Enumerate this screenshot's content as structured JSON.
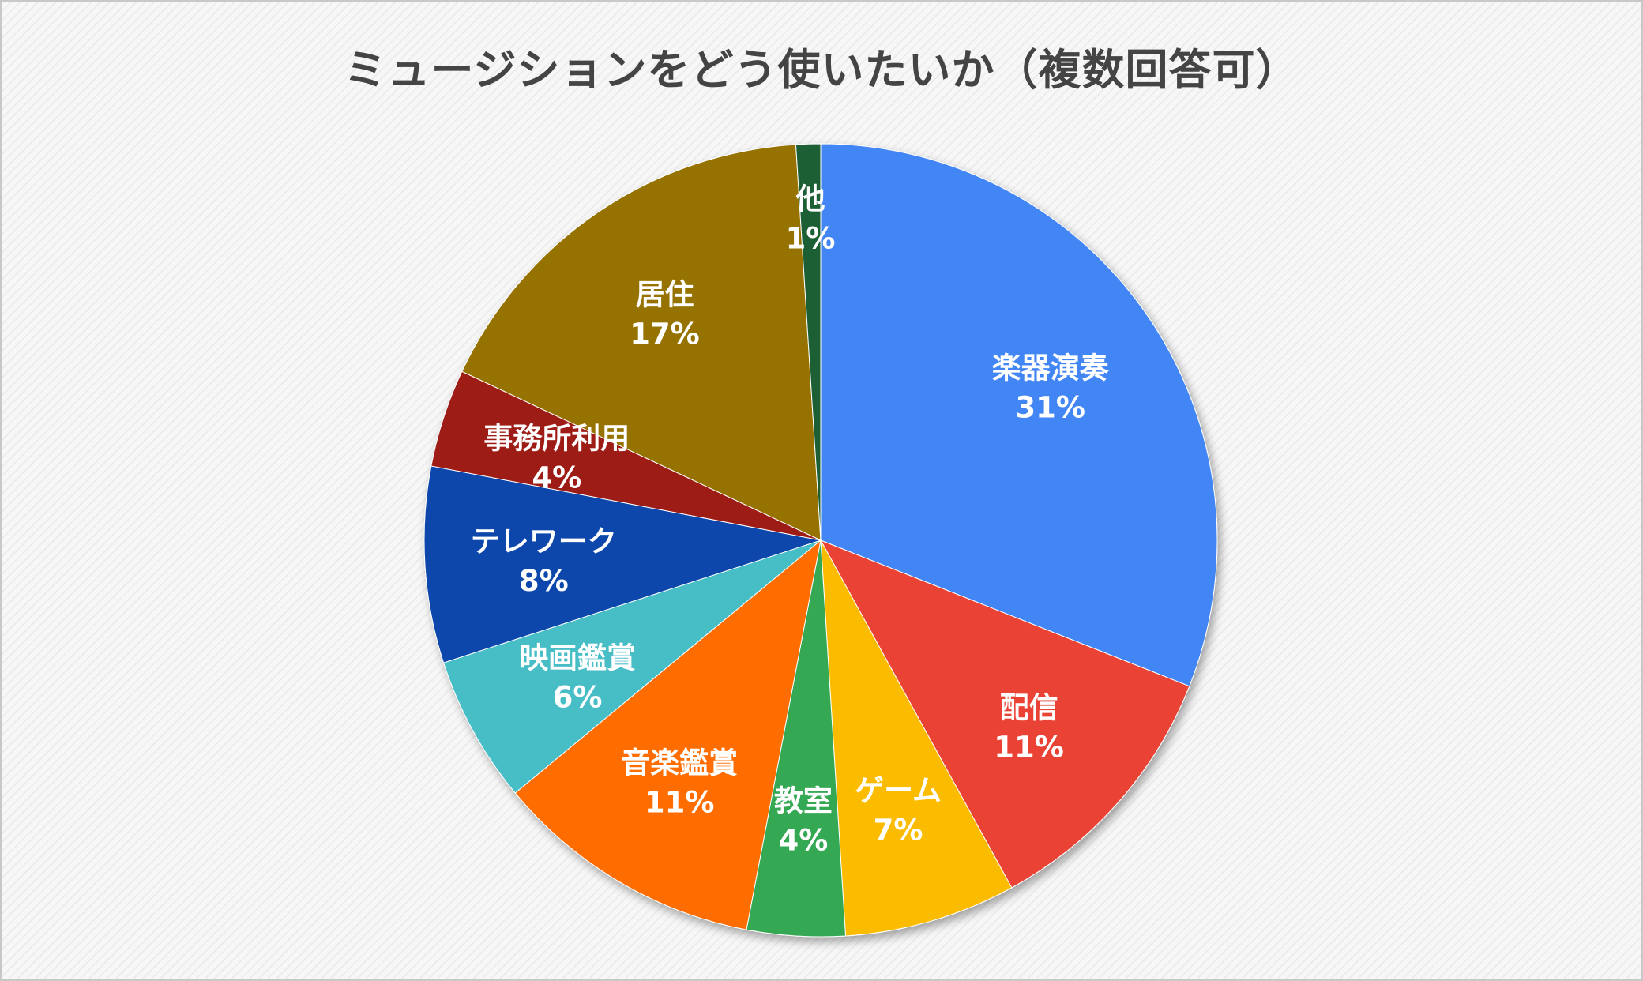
{
  "chart_data": {
    "type": "pie",
    "title": "ミュージションをどう使いたいか（複数回答可）",
    "start_angle_deg": 0,
    "direction": "clockwise",
    "slices": [
      {
        "label": "楽器演奏",
        "value": 31,
        "value_label": "31%",
        "color": "#4285F4"
      },
      {
        "label": "配信",
        "value": 11,
        "value_label": "11%",
        "color": "#EA4335"
      },
      {
        "label": "ゲーム",
        "value": 7,
        "value_label": "7%",
        "color": "#FBBC04"
      },
      {
        "label": "教室",
        "value": 4,
        "value_label": "4%",
        "color": "#34A853"
      },
      {
        "label": "音楽鑑賞",
        "value": 11,
        "value_label": "11%",
        "color": "#FF6D01"
      },
      {
        "label": "映画鑑賞",
        "value": 6,
        "value_label": "6%",
        "color": "#46BDC6"
      },
      {
        "label": "テレワーク",
        "value": 8,
        "value_label": "8%",
        "color": "#0B47AC"
      },
      {
        "label": "事務所利用",
        "value": 4,
        "value_label": "4%",
        "color": "#9E1B14"
      },
      {
        "label": "居住",
        "value": 17,
        "value_label": "17%",
        "color": "#967300"
      },
      {
        "label": "他",
        "value": 1,
        "value_label": "1%",
        "color": "#1E5E34"
      }
    ],
    "legend": "none",
    "data_labels": "inside"
  }
}
